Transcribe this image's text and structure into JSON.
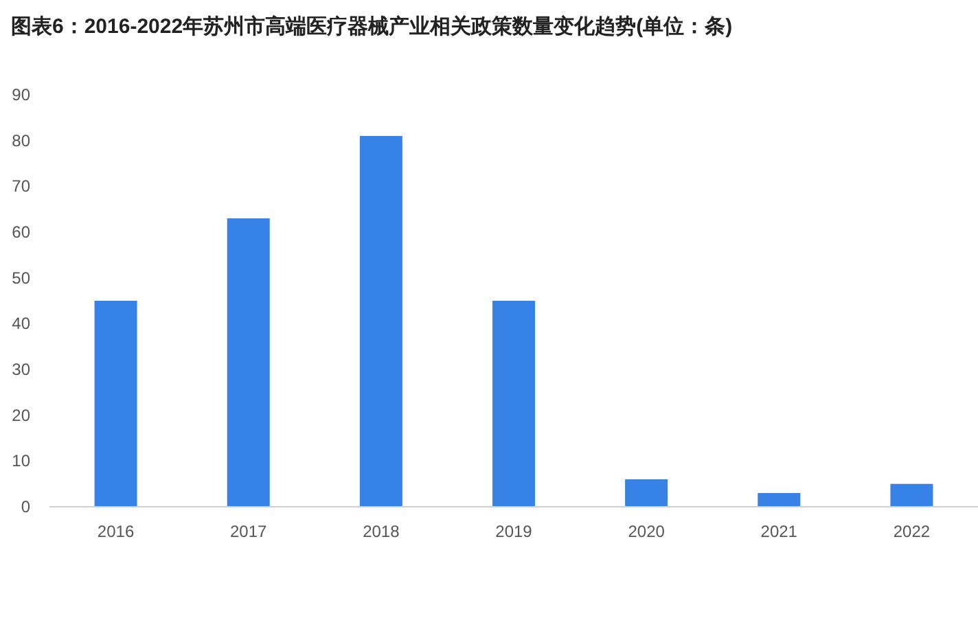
{
  "chart_data": {
    "type": "bar",
    "title": "图表6：2016-2022年苏州市高端医疗器械产业相关政策数量变化趋势(单位：条)",
    "categories": [
      "2016",
      "2017",
      "2018",
      "2019",
      "2020",
      "2021",
      "2022"
    ],
    "values": [
      45,
      63,
      81,
      45,
      6,
      3,
      5
    ],
    "color": "#3682e6",
    "ylim": [
      0,
      90
    ],
    "yticks": [
      0,
      10,
      20,
      30,
      40,
      50,
      60,
      70,
      80,
      90
    ],
    "grid": false
  }
}
